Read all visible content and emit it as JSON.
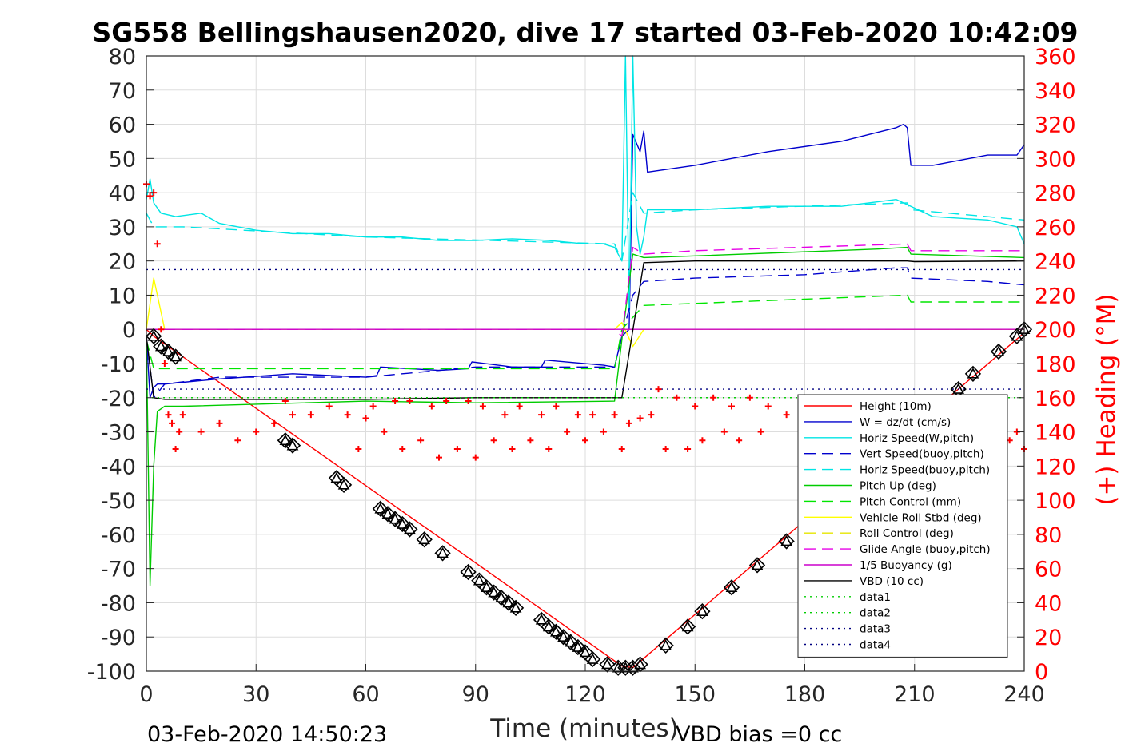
{
  "chart_data": {
    "type": "line",
    "title": "SG558 Bellingshausen2020, dive 17 started 03-Feb-2020 10:42:09",
    "xlabel": "Time (minutes)",
    "ylabel": "",
    "y2label": "(+) Heading (°M)",
    "xlim": [
      0,
      240
    ],
    "ylim": [
      -100,
      80
    ],
    "y2lim": [
      0,
      360
    ],
    "x_ticks": [
      "0",
      "30",
      "60",
      "90",
      "120",
      "150",
      "180",
      "210",
      "240"
    ],
    "y_ticks": [
      "80",
      "70",
      "60",
      "50",
      "40",
      "30",
      "20",
      "10",
      "0",
      "-10",
      "-20",
      "-30",
      "-40",
      "-50",
      "-60",
      "-70",
      "-80",
      "-90",
      "-100"
    ],
    "y2_ticks": [
      "360",
      "340",
      "320",
      "300",
      "280",
      "260",
      "240",
      "220",
      "200",
      "180",
      "160",
      "140",
      "120",
      "100",
      "80",
      "60",
      "40",
      "20",
      "0"
    ],
    "grid": true,
    "legend_position": "lower-right",
    "footer_left": "03-Feb-2020 14:50:23",
    "footer_right": "VBD bias =0 cc",
    "series": [
      {
        "name": "Height (10m)",
        "color": "#ff0000",
        "style": "solid",
        "x": [
          0,
          2,
          130,
          133,
          240
        ],
        "y": [
          0,
          -2,
          -98.5,
          -99,
          -1
        ],
        "marker_x": [
          2,
          4,
          6,
          8,
          38,
          40,
          52,
          54,
          64,
          66,
          68,
          70,
          72,
          76,
          81,
          88,
          91,
          93,
          95,
          97,
          99,
          101,
          108,
          110,
          112,
          114,
          116,
          118,
          120,
          122,
          126,
          129,
          131,
          133,
          135,
          142,
          148,
          152,
          160,
          167,
          175,
          183,
          190,
          197,
          204,
          211,
          218,
          222,
          226,
          233,
          238,
          240
        ],
        "marker_y": [
          -2,
          -5,
          -6.5,
          -8,
          -32.5,
          -34,
          -43.5,
          -45.5,
          -52.5,
          -54,
          -55.5,
          -57,
          -58.5,
          -61.5,
          -65.5,
          -71,
          -73.5,
          -75.5,
          -77,
          -78.5,
          -80,
          -81.5,
          -85,
          -87,
          -88.5,
          -90,
          -91.5,
          -93,
          -94.5,
          -96.5,
          -98,
          -99,
          -99,
          -99,
          -98,
          -92.5,
          -87,
          -82.5,
          -75.5,
          -69,
          -62,
          -55,
          -48.5,
          -42,
          -35,
          -28.5,
          -21.5,
          -17.5,
          -13,
          -6.5,
          -2,
          0
        ]
      },
      {
        "name": "W = dz/dt (cm/s)",
        "color": "#0000cd",
        "style": "solid",
        "x": [
          0,
          1,
          2,
          3,
          5,
          10,
          20,
          40,
          60,
          63,
          64,
          80,
          88,
          89,
          100,
          108,
          109,
          125,
          128,
          130,
          132,
          133,
          135,
          136,
          137,
          150,
          170,
          190,
          205,
          207,
          208,
          209,
          215,
          230,
          238,
          240
        ],
        "y": [
          -2,
          -20,
          -17,
          -16,
          -16,
          -15.5,
          -14.5,
          -13,
          -14,
          -13.5,
          -11,
          -12,
          -11.5,
          -9.5,
          -11,
          -11,
          -9,
          -10.5,
          -11,
          -2,
          0,
          57,
          52,
          58,
          46,
          48,
          52,
          55,
          59,
          60,
          59,
          48,
          48,
          51,
          51,
          54
        ]
      },
      {
        "name": "Horiz Speed(W,pitch)",
        "color": "#00e5e5",
        "style": "solid",
        "x": [
          0,
          1,
          2,
          4,
          8,
          15,
          20,
          30,
          40,
          50,
          60,
          70,
          80,
          90,
          100,
          110,
          120,
          125,
          128,
          130,
          131,
          132,
          133,
          134,
          135,
          136,
          137,
          150,
          170,
          190,
          205,
          215,
          230,
          238,
          240
        ],
        "y": [
          38,
          44,
          37,
          34,
          33,
          34,
          31,
          29,
          28,
          28,
          27,
          27,
          26,
          26,
          26.5,
          26,
          25,
          25,
          24,
          20,
          80,
          5,
          80,
          30,
          22,
          27,
          35,
          35,
          36,
          36,
          38,
          33,
          32,
          30,
          25
        ]
      },
      {
        "name": "Vert Speed(buoy,pitch)",
        "color": "#0000cd",
        "style": "dash",
        "x": [
          0,
          2,
          5,
          20,
          60,
          90,
          128,
          130,
          133,
          136,
          150,
          180,
          205,
          208,
          209,
          230,
          240
        ],
        "y": [
          -2,
          -20,
          -16,
          -14,
          -14,
          -11,
          -11,
          -2,
          10,
          14,
          15,
          16,
          18,
          18,
          15,
          14,
          13
        ]
      },
      {
        "name": "Horiz Speed(buoy,pitch)",
        "color": "#00e5e5",
        "style": "dash",
        "x": [
          0,
          2,
          10,
          60,
          128,
          130,
          133,
          136,
          150,
          208,
          209,
          240
        ],
        "y": [
          34,
          30,
          30,
          27,
          25,
          20,
          40,
          34,
          35,
          37,
          35,
          32
        ]
      },
      {
        "name": "Pitch Up (deg)",
        "color": "#00cc00",
        "style": "solid",
        "x": [
          0,
          1,
          2,
          3,
          5,
          10,
          60,
          90,
          128,
          130,
          133,
          136,
          150,
          200,
          208,
          209,
          240
        ],
        "y": [
          -2,
          -75,
          -40,
          -24,
          -22.5,
          -22.5,
          -21,
          -21.5,
          -21,
          -3,
          22,
          21,
          21.5,
          23.5,
          24,
          22,
          21
        ]
      },
      {
        "name": "Pitch Control (mm)",
        "color": "#00e600",
        "style": "dash",
        "x": [
          0,
          2,
          60,
          128,
          130,
          136,
          208,
          209,
          240
        ],
        "y": [
          -3,
          -11.5,
          -11.5,
          -11.5,
          0,
          7,
          10,
          8,
          8
        ]
      },
      {
        "name": "Vehicle Roll Stbd (deg)",
        "color": "#ffff00",
        "style": "solid",
        "x": [
          0,
          2,
          5,
          10,
          20,
          40,
          60,
          80,
          100,
          120,
          128,
          130,
          133,
          136,
          150,
          180,
          210,
          240
        ],
        "y": [
          0,
          15,
          0,
          0,
          0,
          0,
          0,
          0,
          0,
          0,
          0,
          2,
          -5,
          0,
          0,
          0,
          0,
          0
        ]
      },
      {
        "name": "Roll Control (deg)",
        "color": "#e6e600",
        "style": "dash",
        "x": [
          0,
          240
        ],
        "y": [
          0,
          0
        ]
      },
      {
        "name": "Glide Angle (buoy,pitch)",
        "color": "#e600e6",
        "style": "dash",
        "x": [
          0,
          2,
          128,
          130,
          133,
          136,
          150,
          208,
          209,
          240
        ],
        "y": [
          0,
          0,
          0,
          -2,
          24,
          22,
          23,
          25,
          23,
          23
        ]
      },
      {
        "name": "1/5 Buoyancy (g)",
        "color": "#cc00cc",
        "style": "solid",
        "x": [
          0,
          2,
          128,
          130,
          240
        ],
        "y": [
          0,
          0,
          0,
          0,
          0
        ]
      },
      {
        "name": "VBD (10 cc)",
        "color": "#000000",
        "style": "solid",
        "x": [
          0,
          2,
          5,
          60,
          90,
          128,
          130,
          136,
          150,
          208,
          210,
          240
        ],
        "y": [
          -2,
          -20,
          -20.5,
          -20.5,
          -20,
          -20,
          -20,
          19.5,
          20,
          20,
          19.8,
          20
        ]
      },
      {
        "name": "data1",
        "color": "#00cc00",
        "style": "dot",
        "x": [
          0,
          240
        ],
        "y": [
          -20,
          -20
        ]
      },
      {
        "name": "data2",
        "color": "#00cc00",
        "style": "dot",
        "x": [
          0,
          240
        ],
        "y": [
          -20,
          -20
        ]
      },
      {
        "name": "data3",
        "color": "#000080",
        "style": "dot",
        "x": [
          0,
          240
        ],
        "y": [
          17.5,
          17.5
        ]
      },
      {
        "name": "data4",
        "color": "#000080",
        "style": "dot",
        "x": [
          0,
          240
        ],
        "y": [
          -17.5,
          -17.5
        ]
      },
      {
        "name": "Heading (°M)",
        "color": "#ff0000",
        "style": "plus",
        "axis": "right",
        "x": [
          0,
          1,
          2,
          3,
          4,
          5,
          6,
          7,
          8,
          9,
          10,
          15,
          20,
          25,
          30,
          35,
          38,
          40,
          45,
          50,
          55,
          58,
          60,
          62,
          65,
          68,
          70,
          72,
          75,
          78,
          80,
          82,
          85,
          88,
          90,
          92,
          95,
          98,
          100,
          102,
          105,
          108,
          110,
          112,
          115,
          118,
          120,
          122,
          125,
          128,
          130,
          132,
          135,
          138,
          140,
          142,
          145,
          148,
          150,
          152,
          155,
          158,
          160,
          162,
          165,
          168,
          170,
          175,
          180,
          185,
          190,
          195,
          200,
          205,
          210,
          215,
          220,
          225,
          230,
          234,
          236,
          238,
          240
        ],
        "y": [
          285,
          278,
          280,
          250,
          200,
          180,
          150,
          145,
          130,
          140,
          150,
          140,
          145,
          135,
          140,
          145,
          158,
          150,
          150,
          155,
          150,
          130,
          148,
          155,
          140,
          158,
          130,
          158,
          135,
          155,
          125,
          158,
          130,
          158,
          125,
          155,
          135,
          150,
          130,
          155,
          135,
          150,
          130,
          155,
          140,
          150,
          135,
          150,
          140,
          150,
          130,
          145,
          148,
          150,
          165,
          130,
          160,
          130,
          155,
          135,
          160,
          140,
          155,
          135,
          160,
          140,
          155,
          150,
          145,
          140,
          150,
          140,
          150,
          135,
          145,
          150,
          145,
          140,
          150,
          155,
          135,
          140,
          130
        ]
      }
    ]
  }
}
